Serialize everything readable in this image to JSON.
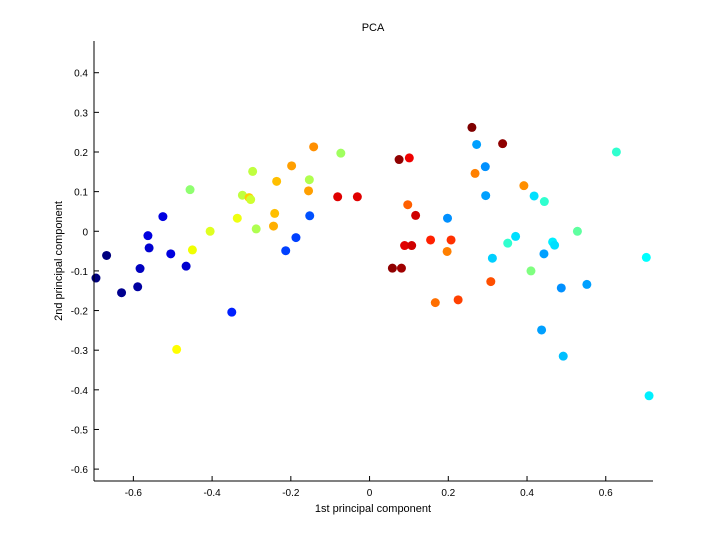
{
  "chart_data": {
    "type": "scatter",
    "title": "PCA",
    "xlabel": "1st principal component",
    "ylabel": "2nd principal component",
    "xlim": [
      -0.7,
      0.72
    ],
    "ylim": [
      -0.63,
      0.48
    ],
    "xticks": [
      -0.6,
      -0.4,
      -0.2,
      0,
      0.2,
      0.4,
      0.6
    ],
    "xtick_labels": [
      "-0.6",
      "-0.4",
      "-0.2",
      "0",
      "0.2",
      "0.4",
      "0.6"
    ],
    "yticks": [
      -0.6,
      -0.5,
      -0.4,
      -0.3,
      -0.2,
      -0.1,
      0,
      0.1,
      0.2,
      0.3,
      0.4
    ],
    "ytick_labels": [
      "-0.6",
      "-0.5",
      "-0.4",
      "-0.3",
      "-0.2",
      "-0.1",
      "0",
      "0.1",
      "0.2",
      "0.3",
      "0.4"
    ],
    "grid": false,
    "points": [
      {
        "x": -0.695,
        "y": -0.118,
        "color": "#00007f"
      },
      {
        "x": -0.668,
        "y": -0.061,
        "color": "#00007f"
      },
      {
        "x": -0.63,
        "y": -0.155,
        "color": "#00008f"
      },
      {
        "x": -0.589,
        "y": -0.14,
        "color": "#0000a0"
      },
      {
        "x": -0.583,
        "y": -0.094,
        "color": "#0000bf"
      },
      {
        "x": -0.563,
        "y": -0.011,
        "color": "#0000df"
      },
      {
        "x": -0.56,
        "y": -0.042,
        "color": "#0000d0"
      },
      {
        "x": -0.525,
        "y": 0.037,
        "color": "#0000e0"
      },
      {
        "x": -0.505,
        "y": -0.057,
        "color": "#0000df"
      },
      {
        "x": -0.466,
        "y": -0.088,
        "color": "#0000cf"
      },
      {
        "x": -0.456,
        "y": 0.105,
        "color": "#8fff70"
      },
      {
        "x": -0.45,
        "y": -0.047,
        "color": "#f0ff00"
      },
      {
        "x": -0.49,
        "y": -0.298,
        "color": "#ffff00"
      },
      {
        "x": -0.405,
        "y": 0.0,
        "color": "#dfff20"
      },
      {
        "x": -0.35,
        "y": -0.204,
        "color": "#0020ff"
      },
      {
        "x": -0.336,
        "y": 0.033,
        "color": "#efff10"
      },
      {
        "x": -0.323,
        "y": 0.091,
        "color": "#c0ff3f"
      },
      {
        "x": -0.306,
        "y": 0.085,
        "color": "#ffcf00"
      },
      {
        "x": -0.302,
        "y": 0.08,
        "color": "#cfff30"
      },
      {
        "x": -0.297,
        "y": 0.151,
        "color": "#c0ff3f"
      },
      {
        "x": -0.288,
        "y": 0.006,
        "color": "#afff50"
      },
      {
        "x": -0.244,
        "y": 0.013,
        "color": "#ffaf00"
      },
      {
        "x": -0.241,
        "y": 0.045,
        "color": "#ffbf00"
      },
      {
        "x": -0.236,
        "y": 0.126,
        "color": "#ffbf00"
      },
      {
        "x": -0.213,
        "y": -0.049,
        "color": "#0040ff"
      },
      {
        "x": -0.198,
        "y": 0.165,
        "color": "#ff9f00"
      },
      {
        "x": -0.187,
        "y": -0.016,
        "color": "#0040ff"
      },
      {
        "x": -0.155,
        "y": 0.102,
        "color": "#ff9f00"
      },
      {
        "x": -0.153,
        "y": 0.13,
        "color": "#b0ff4f"
      },
      {
        "x": -0.152,
        "y": 0.039,
        "color": "#0050ff"
      },
      {
        "x": -0.142,
        "y": 0.213,
        "color": "#ff8f00"
      },
      {
        "x": -0.081,
        "y": 0.087,
        "color": "#df0000"
      },
      {
        "x": -0.073,
        "y": 0.197,
        "color": "#a0ff5f"
      },
      {
        "x": -0.031,
        "y": 0.087,
        "color": "#e00000"
      },
      {
        "x": 0.058,
        "y": -0.093,
        "color": "#8f0000"
      },
      {
        "x": 0.075,
        "y": 0.181,
        "color": "#8f0000"
      },
      {
        "x": 0.081,
        "y": -0.093,
        "color": "#a00000"
      },
      {
        "x": 0.089,
        "y": -0.036,
        "color": "#e00000"
      },
      {
        "x": 0.097,
        "y": 0.067,
        "color": "#ff5f00"
      },
      {
        "x": 0.101,
        "y": 0.185,
        "color": "#ef0000"
      },
      {
        "x": 0.107,
        "y": -0.036,
        "color": "#cf0000"
      },
      {
        "x": 0.117,
        "y": 0.04,
        "color": "#cf0000"
      },
      {
        "x": 0.155,
        "y": -0.022,
        "color": "#ff2000"
      },
      {
        "x": 0.167,
        "y": -0.18,
        "color": "#ff6f00"
      },
      {
        "x": 0.197,
        "y": -0.051,
        "color": "#ff7f00"
      },
      {
        "x": 0.198,
        "y": 0.033,
        "color": "#0090ff"
      },
      {
        "x": 0.207,
        "y": -0.022,
        "color": "#ff3000"
      },
      {
        "x": 0.225,
        "y": -0.173,
        "color": "#ff4000"
      },
      {
        "x": 0.26,
        "y": 0.262,
        "color": "#7f0000"
      },
      {
        "x": 0.268,
        "y": 0.146,
        "color": "#ff8000"
      },
      {
        "x": 0.272,
        "y": 0.219,
        "color": "#00a0ff"
      },
      {
        "x": 0.294,
        "y": 0.163,
        "color": "#0090ff"
      },
      {
        "x": 0.295,
        "y": 0.09,
        "color": "#00a0ff"
      },
      {
        "x": 0.308,
        "y": -0.127,
        "color": "#ff4f00"
      },
      {
        "x": 0.312,
        "y": -0.068,
        "color": "#00cfff"
      },
      {
        "x": 0.338,
        "y": 0.221,
        "color": "#8f0000"
      },
      {
        "x": 0.351,
        "y": -0.03,
        "color": "#30ffcf"
      },
      {
        "x": 0.371,
        "y": -0.013,
        "color": "#00dfff"
      },
      {
        "x": 0.392,
        "y": 0.115,
        "color": "#ff8f00"
      },
      {
        "x": 0.41,
        "y": -0.1,
        "color": "#7fff80"
      },
      {
        "x": 0.418,
        "y": 0.089,
        "color": "#00e0ff"
      },
      {
        "x": 0.437,
        "y": -0.249,
        "color": "#00a0ff"
      },
      {
        "x": 0.443,
        "y": -0.057,
        "color": "#00a0ff"
      },
      {
        "x": 0.444,
        "y": 0.075,
        "color": "#30ffcf"
      },
      {
        "x": 0.465,
        "y": -0.027,
        "color": "#00efff"
      },
      {
        "x": 0.47,
        "y": -0.035,
        "color": "#00dfff"
      },
      {
        "x": 0.487,
        "y": -0.143,
        "color": "#0090ff"
      },
      {
        "x": 0.492,
        "y": -0.315,
        "color": "#00bfff"
      },
      {
        "x": 0.528,
        "y": 0.0,
        "color": "#5fffa0"
      },
      {
        "x": 0.552,
        "y": -0.134,
        "color": "#00a0ff"
      },
      {
        "x": 0.627,
        "y": 0.2,
        "color": "#30ffcf"
      },
      {
        "x": 0.703,
        "y": -0.066,
        "color": "#00ffff"
      },
      {
        "x": 0.71,
        "y": -0.415,
        "color": "#00f0ff"
      }
    ]
  }
}
